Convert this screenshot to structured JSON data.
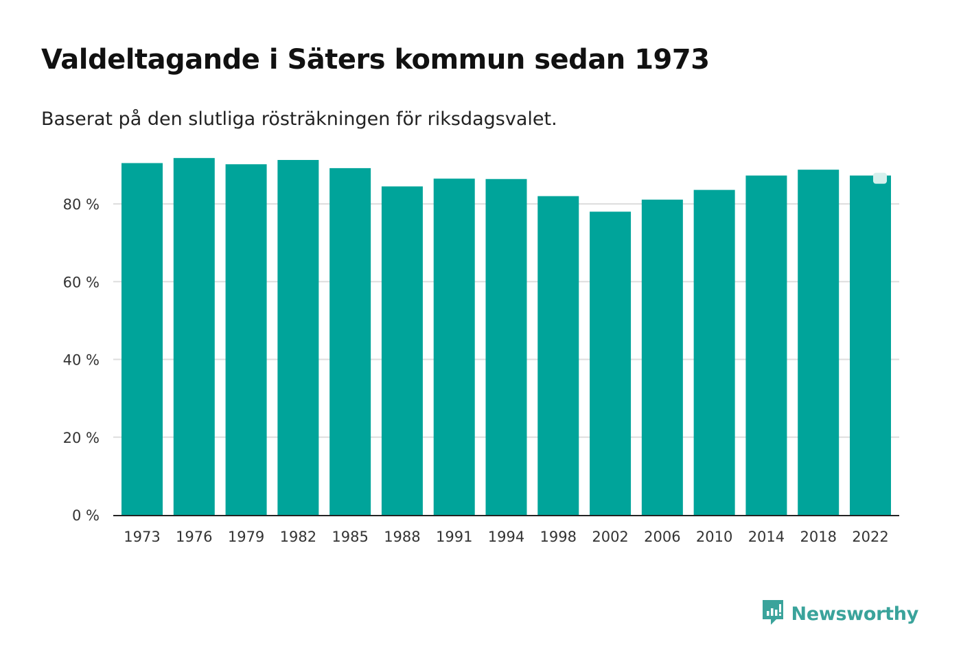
{
  "header": {
    "title": "Valdeltagande i Säters kommun sedan 1973",
    "subtitle": "Baserat på den slutliga rösträkningen för riksdagsvalet."
  },
  "brand": {
    "name": "Newsworthy",
    "icon": "newsworthy-logo-icon",
    "color": "#3aa39b"
  },
  "colors": {
    "bar": "#00a49a",
    "grid": "#dddddd",
    "axis": "#222222",
    "highlight_marker": "#d6f0ed"
  },
  "chart_data": {
    "type": "bar",
    "title": "Valdeltagande i Säters kommun sedan 1973",
    "subtitle": "Baserat på den slutliga rösträkningen för riksdagsvalet.",
    "xlabel": "",
    "ylabel": "",
    "categories": [
      "1973",
      "1976",
      "1979",
      "1982",
      "1985",
      "1988",
      "1991",
      "1994",
      "1998",
      "2002",
      "2006",
      "2010",
      "2014",
      "2018",
      "2022"
    ],
    "values": [
      90.5,
      91.8,
      90.2,
      91.3,
      89.2,
      84.5,
      86.5,
      86.4,
      82.0,
      78.0,
      81.1,
      83.6,
      87.3,
      88.8,
      87.3
    ],
    "ylim": [
      0,
      92
    ],
    "yticks": [
      0,
      20,
      40,
      60,
      80
    ],
    "ytick_labels": [
      "0 %",
      "20 %",
      "40 %",
      "60 %",
      "80 %"
    ],
    "grid": true,
    "legend": "none",
    "highlighted_category": "2022"
  }
}
